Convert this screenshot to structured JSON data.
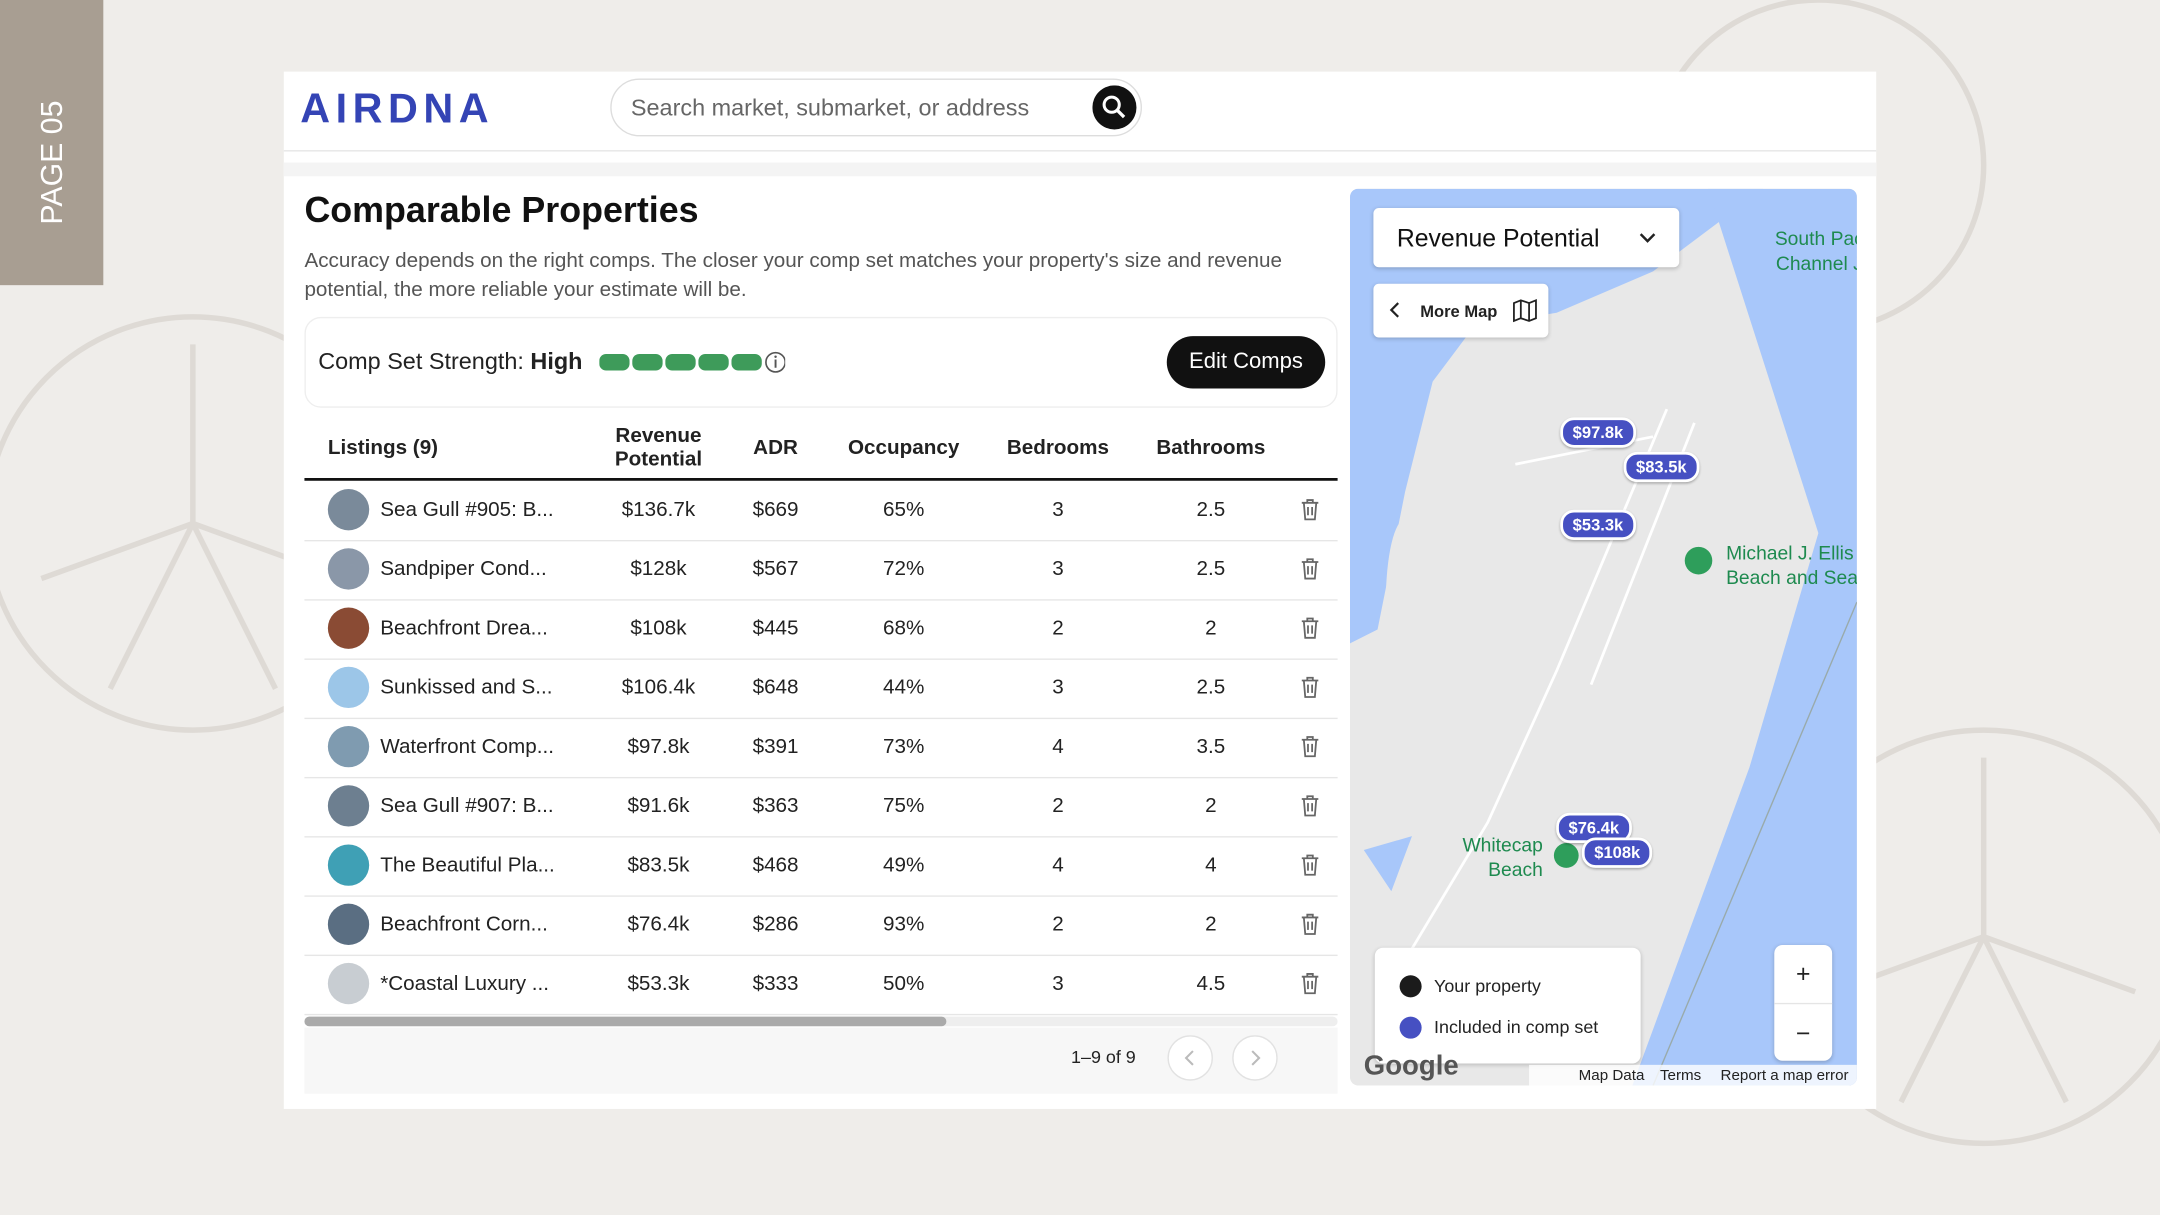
{
  "page_label": "PAGE 05",
  "header": {
    "logo": "AIRDNA",
    "search_placeholder": "Search market, submarket, or address"
  },
  "section": {
    "title": "Comparable Properties",
    "description": "Accuracy depends on the right comps. The closer your comp set matches your property's size and revenue potential, the more reliable your estimate will be."
  },
  "comp_strength": {
    "label": "Comp Set Strength:",
    "value": "High",
    "button": "Edit Comps"
  },
  "table": {
    "columns": [
      "Listings (9)",
      "Revenue Potential",
      "ADR",
      "Occupancy",
      "Bedrooms",
      "Bathrooms"
    ],
    "rows": [
      [
        "Sea Gull #905: B...",
        "$136.7k",
        "$669",
        "65%",
        "3",
        "2.5"
      ],
      [
        "Sandpiper Cond...",
        "$128k",
        "$567",
        "72%",
        "3",
        "2.5"
      ],
      [
        "Beachfront Drea...",
        "$108k",
        "$445",
        "68%",
        "2",
        "2"
      ],
      [
        "Sunkissed and S...",
        "$106.4k",
        "$648",
        "44%",
        "3",
        "2.5"
      ],
      [
        "Waterfront Comp...",
        "$97.8k",
        "$391",
        "73%",
        "4",
        "3.5"
      ],
      [
        "Sea Gull #907: B...",
        "$91.6k",
        "$363",
        "75%",
        "2",
        "2"
      ],
      [
        "The Beautiful Pla...",
        "$83.5k",
        "$468",
        "49%",
        "4",
        "4"
      ],
      [
        "Beachfront Corn...",
        "$76.4k",
        "$286",
        "93%",
        "2",
        "2"
      ],
      [
        "*Coastal Luxury ...",
        "$53.3k",
        "$333",
        "50%",
        "3",
        "4.5"
      ]
    ]
  },
  "pagination": {
    "range": "1–9 of 9"
  },
  "map": {
    "metric": "Revenue Potential",
    "more_map": "More Map",
    "places": [
      [
        "South Pack",
        "Channel Je"
      ],
      [
        "Michael J. Ellis",
        "Beach and Sea"
      ],
      [
        "Whitecap",
        "Beach"
      ]
    ],
    "markers": [
      "$97.8k",
      "$83.5k",
      "$53.3k",
      "$76.4k",
      "$108k"
    ],
    "legend": [
      "Your property",
      "Included in comp set"
    ],
    "zoom": [
      "+",
      "−"
    ],
    "attribution": "Google",
    "footer": [
      "Map Data",
      "Terms",
      "Report a map error"
    ]
  }
}
